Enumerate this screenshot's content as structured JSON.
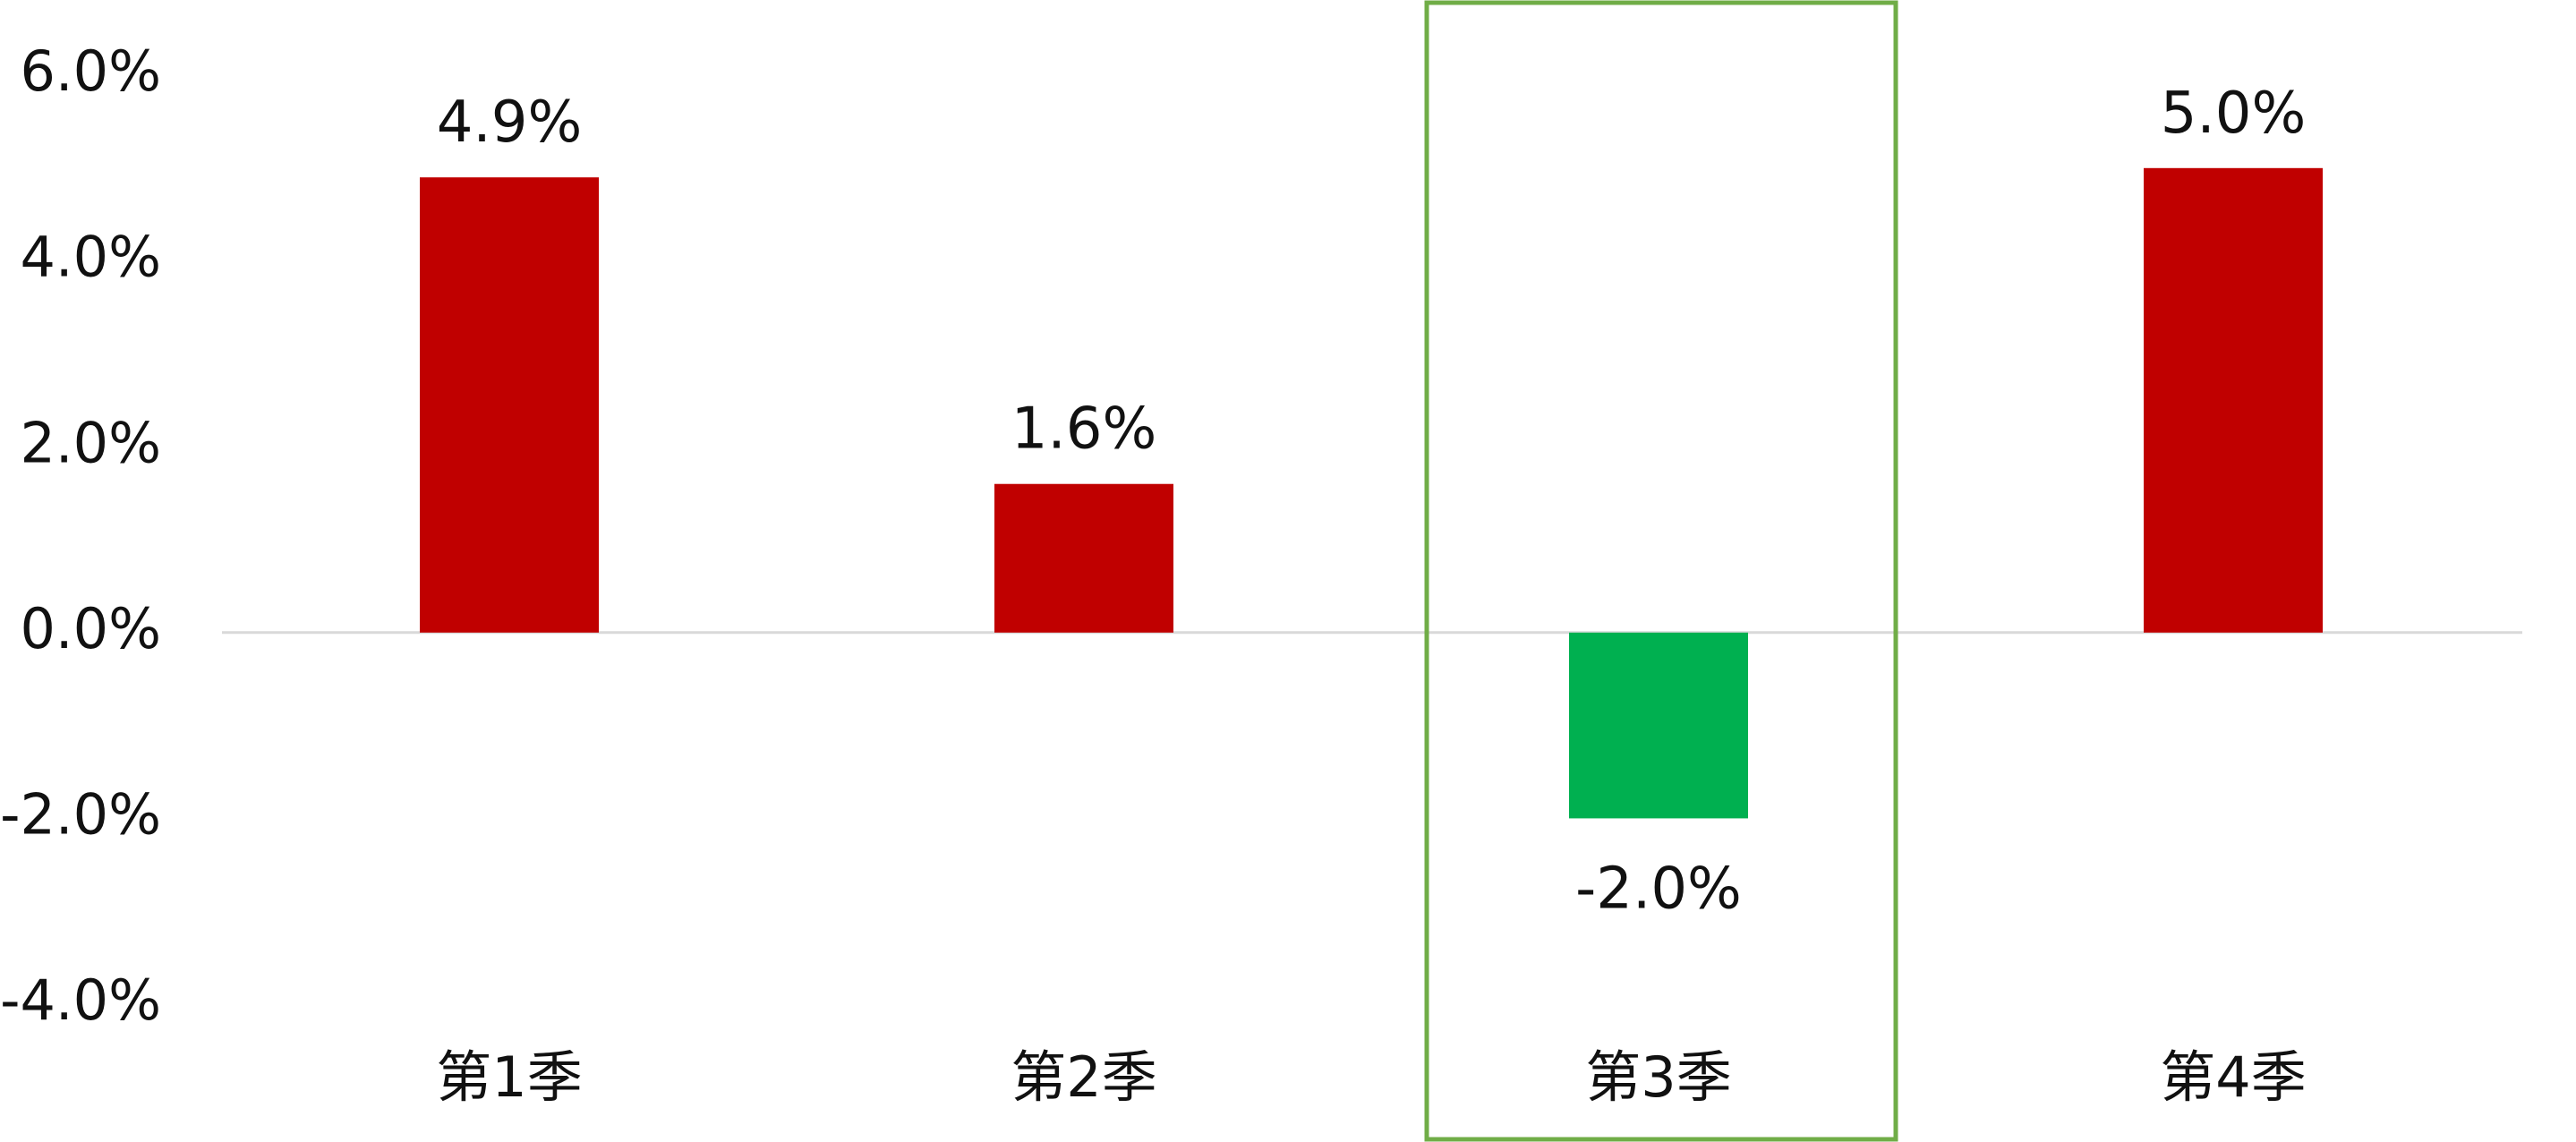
{
  "chart_data": {
    "type": "bar",
    "categories": [
      "第1季",
      "第2季",
      "第3季",
      "第4季"
    ],
    "values": [
      4.9,
      1.6,
      -2.0,
      5.0
    ],
    "data_labels": [
      "4.9%",
      "1.6%",
      "-2.0%",
      "5.0%"
    ],
    "y_ticks": [
      6.0,
      4.0,
      2.0,
      0.0,
      -2.0,
      -4.0
    ],
    "y_tick_labels": [
      "6.0%",
      "4.0%",
      "2.0%",
      "0.0%",
      "-2.0%",
      "-4.0%"
    ],
    "ylim": [
      -4.0,
      6.0
    ],
    "grid": false,
    "highlighted_category": "第3季",
    "colors": {
      "positive": "#C00000",
      "negative": "#00B050",
      "highlight_box": "#70AD47",
      "zero_line": "#D9D9D9"
    }
  }
}
